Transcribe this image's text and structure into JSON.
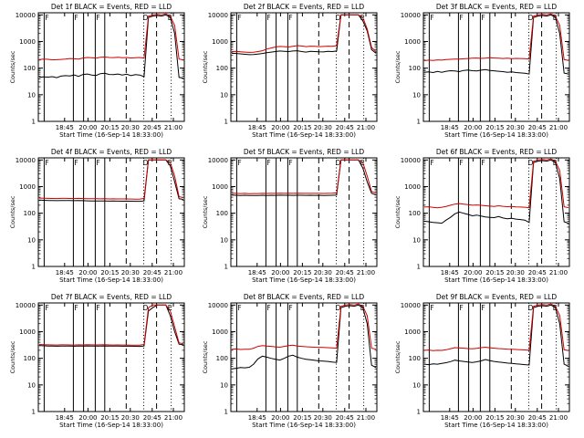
{
  "figure": {
    "background": "#ffffff",
    "axis_color": "#000000"
  },
  "chart_data": [
    {
      "type": "line",
      "title": "Det 1f BLACK = Events, RED = LLD",
      "xlabel": "Start Time (16-Sep-14 18:33:00)",
      "ylabel": "Counts/sec",
      "y_scale": "log",
      "ylim": [
        1,
        12000
      ],
      "y_ticks": [
        "1",
        "10",
        "100",
        "1000",
        "10000"
      ],
      "x_ticks": [
        "18:45",
        "20:00",
        "20:15",
        "20:30",
        "20:45",
        "21:00"
      ],
      "markers": [
        "F",
        "F",
        "F",
        "D",
        "E"
      ],
      "series": [
        {
          "color": "#000000",
          "values": [
            45,
            47,
            46,
            48,
            44,
            50,
            52,
            51,
            55,
            49,
            58,
            60,
            55,
            53,
            62,
            64,
            58,
            57,
            60,
            55,
            59,
            52,
            57,
            55,
            48,
            8000,
            9000,
            9500,
            9000,
            10000,
            8000,
            2000,
            45,
            42
          ]
        },
        {
          "color": "#d00000",
          "values": [
            210,
            220,
            215,
            205,
            208,
            212,
            218,
            230,
            225,
            220,
            240,
            250,
            245,
            238,
            255,
            260,
            250,
            248,
            255,
            245,
            250,
            240,
            246,
            250,
            235,
            9000,
            10000,
            10500,
            10000,
            11000,
            9000,
            4000,
            220,
            205
          ]
        }
      ]
    },
    {
      "type": "line",
      "title": "Det 2f BLACK = Events, RED = LLD",
      "xlabel": "Start Time (16-Sep-14 18:33:00)",
      "ylabel": "Counts/sec",
      "y_scale": "log",
      "ylim": [
        1,
        12000
      ],
      "y_ticks": [
        "1",
        "10",
        "100",
        "1000",
        "10000"
      ],
      "x_ticks": [
        "18:45",
        "20:00",
        "20:15",
        "20:30",
        "20:45",
        "21:00"
      ],
      "markers": [
        "F",
        "F",
        "F",
        "D",
        "E"
      ],
      "series": [
        {
          "color": "#000000",
          "values": [
            360,
            355,
            345,
            330,
            320,
            325,
            340,
            355,
            380,
            400,
            420,
            440,
            430,
            420,
            440,
            450,
            420,
            400,
            430,
            420,
            410,
            405,
            430,
            420,
            440,
            10000,
            10000,
            10000,
            10000,
            10000,
            6000,
            2500,
            500,
            360
          ]
        },
        {
          "color": "#d00000",
          "values": [
            420,
            430,
            410,
            400,
            390,
            395,
            420,
            450,
            520,
            570,
            620,
            650,
            640,
            620,
            660,
            700,
            680,
            640,
            670,
            660,
            640,
            650,
            670,
            660,
            700,
            10000,
            10000,
            10000,
            10000,
            10000,
            8000,
            3000,
            600,
            420
          ]
        }
      ]
    },
    {
      "type": "line",
      "title": "Det 3f BLACK = Events, RED = LLD",
      "xlabel": "Start Time (16-Sep-14 18:33:00)",
      "ylabel": "Counts/sec",
      "y_scale": "log",
      "ylim": [
        1,
        12000
      ],
      "y_ticks": [
        "1",
        "10",
        "100",
        "1000",
        "10000"
      ],
      "x_ticks": [
        "18:45",
        "20:00",
        "20:15",
        "20:30",
        "20:45",
        "21:00"
      ],
      "markers": [
        "F",
        "F",
        "F",
        "D",
        "E"
      ],
      "series": [
        {
          "color": "#000000",
          "values": [
            70,
            72,
            68,
            75,
            70,
            76,
            80,
            78,
            74,
            82,
            85,
            80,
            78,
            84,
            88,
            82,
            79,
            76,
            74,
            70,
            72,
            68,
            66,
            64,
            60,
            8000,
            9000,
            9500,
            9000,
            10000,
            8000,
            2000,
            65,
            60
          ]
        },
        {
          "color": "#d00000",
          "values": [
            190,
            200,
            195,
            205,
            200,
            210,
            215,
            220,
            218,
            225,
            230,
            235,
            240,
            232,
            238,
            245,
            240,
            236,
            230,
            235,
            228,
            232,
            230,
            226,
            220,
            9000,
            10000,
            10500,
            10000,
            11000,
            9000,
            4000,
            210,
            195
          ]
        }
      ]
    },
    {
      "type": "line",
      "title": "Det 4f BLACK = Events, RED = LLD",
      "xlabel": "Start Time (16-Sep-14 18:33:00)",
      "ylabel": "Counts/sec",
      "y_scale": "log",
      "ylim": [
        1,
        12000
      ],
      "y_ticks": [
        "1",
        "10",
        "100",
        "1000",
        "10000"
      ],
      "x_ticks": [
        "18:45",
        "20:00",
        "20:15",
        "20:30",
        "20:45",
        "21:00"
      ],
      "markers": [
        "F",
        "F",
        "F",
        "D",
        "E"
      ],
      "series": [
        {
          "color": "#000000",
          "values": [
            310,
            305,
            300,
            300,
            295,
            300,
            300,
            298,
            295,
            300,
            295,
            292,
            290,
            290,
            288,
            290,
            285,
            288,
            285,
            283,
            285,
            282,
            280,
            280,
            290,
            10000,
            10000,
            10000,
            10000,
            10000,
            6000,
            1500,
            350,
            330
          ]
        },
        {
          "color": "#d00000",
          "values": [
            370,
            365,
            360,
            358,
            355,
            360,
            360,
            358,
            355,
            360,
            355,
            352,
            350,
            350,
            348,
            350,
            345,
            348,
            345,
            343,
            345,
            342,
            340,
            340,
            360,
            10000,
            10000,
            10000,
            10000,
            10000,
            8000,
            2500,
            420,
            380
          ]
        }
      ]
    },
    {
      "type": "line",
      "title": "Det 5f BLACK = Events, RED = LLD",
      "xlabel": "Start Time (16-Sep-14 18:33:00)",
      "ylabel": "Counts/sec",
      "y_scale": "log",
      "ylim": [
        1,
        12000
      ],
      "y_ticks": [
        "1",
        "10",
        "100",
        "1000",
        "10000"
      ],
      "x_ticks": [
        "18:45",
        "20:00",
        "20:15",
        "20:30",
        "20:45",
        "21:00"
      ],
      "markers": [
        "F",
        "F",
        "F",
        "D",
        "E"
      ],
      "series": [
        {
          "color": "#000000",
          "values": [
            480,
            470,
            465,
            470,
            460,
            465,
            460,
            470,
            465,
            470,
            468,
            475,
            470,
            470,
            468,
            472,
            470,
            468,
            470,
            468,
            470,
            465,
            468,
            470,
            480,
            10000,
            10000,
            10000,
            10000,
            10000,
            5000,
            1500,
            560,
            480
          ]
        },
        {
          "color": "#d00000",
          "values": [
            560,
            555,
            550,
            555,
            545,
            550,
            548,
            555,
            552,
            558,
            555,
            560,
            558,
            560,
            556,
            560,
            558,
            556,
            558,
            556,
            558,
            552,
            556,
            560,
            580,
            10000,
            10000,
            10000,
            10000,
            10000,
            8000,
            2500,
            650,
            560
          ]
        }
      ]
    },
    {
      "type": "line",
      "title": "Det 6f BLACK = Events, RED = LLD",
      "xlabel": "Start Time (16-Sep-14 18:33:00)",
      "ylabel": "Counts/sec",
      "y_scale": "log",
      "ylim": [
        1,
        12000
      ],
      "y_ticks": [
        "1",
        "10",
        "100",
        "1000",
        "10000"
      ],
      "x_ticks": [
        "18:45",
        "20:00",
        "20:15",
        "20:30",
        "20:45",
        "21:00"
      ],
      "markers": [
        "F",
        "F",
        "F",
        "D",
        "E"
      ],
      "series": [
        {
          "color": "#000000",
          "values": [
            50,
            48,
            45,
            44,
            42,
            55,
            70,
            95,
            110,
            100,
            90,
            80,
            85,
            78,
            72,
            70,
            68,
            75,
            66,
            62,
            64,
            60,
            58,
            55,
            45,
            8000,
            9000,
            9500,
            9000,
            10000,
            8000,
            2000,
            48,
            42
          ]
        },
        {
          "color": "#d00000",
          "values": [
            170,
            175,
            165,
            160,
            168,
            180,
            200,
            220,
            230,
            220,
            210,
            200,
            205,
            198,
            190,
            185,
            180,
            190,
            182,
            176,
            178,
            172,
            170,
            168,
            160,
            9000,
            10000,
            10500,
            10000,
            11000,
            9000,
            4000,
            175,
            160
          ]
        }
      ]
    },
    {
      "type": "line",
      "title": "Det 7f BLACK = Events, RED = LLD",
      "xlabel": "Start Time (16-Sep-14 18:33:00)",
      "ylabel": "Counts/sec",
      "y_scale": "log",
      "ylim": [
        1,
        12000
      ],
      "y_ticks": [
        "1",
        "10",
        "100",
        "1000",
        "10000"
      ],
      "x_ticks": [
        "18:45",
        "20:00",
        "20:15",
        "20:30",
        "20:45",
        "21:00"
      ],
      "markers": [
        "F",
        "F",
        "F",
        "D",
        "E"
      ],
      "series": [
        {
          "color": "#000000",
          "values": [
            300,
            295,
            290,
            290,
            285,
            290,
            290,
            288,
            285,
            290,
            288,
            292,
            290,
            288,
            290,
            292,
            288,
            286,
            288,
            285,
            286,
            284,
            282,
            280,
            290,
            6000,
            8000,
            10000,
            10000,
            10000,
            4000,
            1000,
            340,
            320
          ]
        },
        {
          "color": "#d00000",
          "values": [
            330,
            325,
            320,
            318,
            315,
            320,
            320,
            318,
            315,
            320,
            318,
            322,
            320,
            318,
            320,
            322,
            318,
            316,
            318,
            315,
            316,
            314,
            312,
            310,
            330,
            8000,
            10000,
            10000,
            10000,
            10000,
            6000,
            1500,
            380,
            350
          ]
        }
      ]
    },
    {
      "type": "line",
      "title": "Det 8f BLACK = Events, RED = LLD",
      "xlabel": "Start Time (16-Sep-14 18:33:00)",
      "ylabel": "Counts/sec",
      "y_scale": "log",
      "ylim": [
        1,
        12000
      ],
      "y_ticks": [
        "1",
        "10",
        "100",
        "1000",
        "10000"
      ],
      "x_ticks": [
        "18:45",
        "20:00",
        "20:15",
        "20:30",
        "20:45",
        "21:00"
      ],
      "markers": [
        "F",
        "F",
        "F",
        "D",
        "E"
      ],
      "series": [
        {
          "color": "#000000",
          "values": [
            40,
            42,
            45,
            44,
            46,
            60,
            95,
            120,
            110,
            100,
            92,
            86,
            100,
            120,
            130,
            110,
            100,
            92,
            88,
            84,
            80,
            78,
            76,
            72,
            70,
            8000,
            9000,
            9500,
            9000,
            10000,
            8000,
            2000,
            55,
            45
          ]
        },
        {
          "color": "#d00000",
          "values": [
            220,
            225,
            215,
            220,
            218,
            240,
            280,
            300,
            290,
            280,
            270,
            262,
            280,
            300,
            310,
            290,
            280,
            272,
            268,
            262,
            258,
            254,
            250,
            246,
            240,
            9000,
            10000,
            10500,
            10000,
            11000,
            9000,
            4000,
            240,
            220
          ]
        }
      ]
    },
    {
      "type": "line",
      "title": "Det 9f BLACK = Events, RED = LLD",
      "xlabel": "Start Time (16-Sep-14 18:33:00)",
      "ylabel": "Counts/sec",
      "y_scale": "log",
      "ylim": [
        1,
        12000
      ],
      "y_ticks": [
        "1",
        "10",
        "100",
        "1000",
        "10000"
      ],
      "x_ticks": [
        "18:45",
        "20:00",
        "20:15",
        "20:30",
        "20:45",
        "21:00"
      ],
      "markers": [
        "F",
        "F",
        "F",
        "D",
        "E"
      ],
      "series": [
        {
          "color": "#000000",
          "values": [
            60,
            58,
            62,
            60,
            64,
            68,
            75,
            85,
            80,
            76,
            72,
            70,
            74,
            80,
            90,
            82,
            76,
            72,
            70,
            66,
            64,
            62,
            60,
            58,
            56,
            8000,
            9000,
            9500,
            9000,
            10000,
            8000,
            2000,
            60,
            50
          ]
        },
        {
          "color": "#d00000",
          "values": [
            200,
            205,
            195,
            200,
            198,
            210,
            230,
            250,
            245,
            240,
            232,
            228,
            236,
            250,
            262,
            248,
            240,
            232,
            228,
            222,
            218,
            214,
            210,
            206,
            200,
            9000,
            10000,
            10500,
            10000,
            11000,
            9000,
            4000,
            210,
            195
          ]
        }
      ]
    }
  ]
}
